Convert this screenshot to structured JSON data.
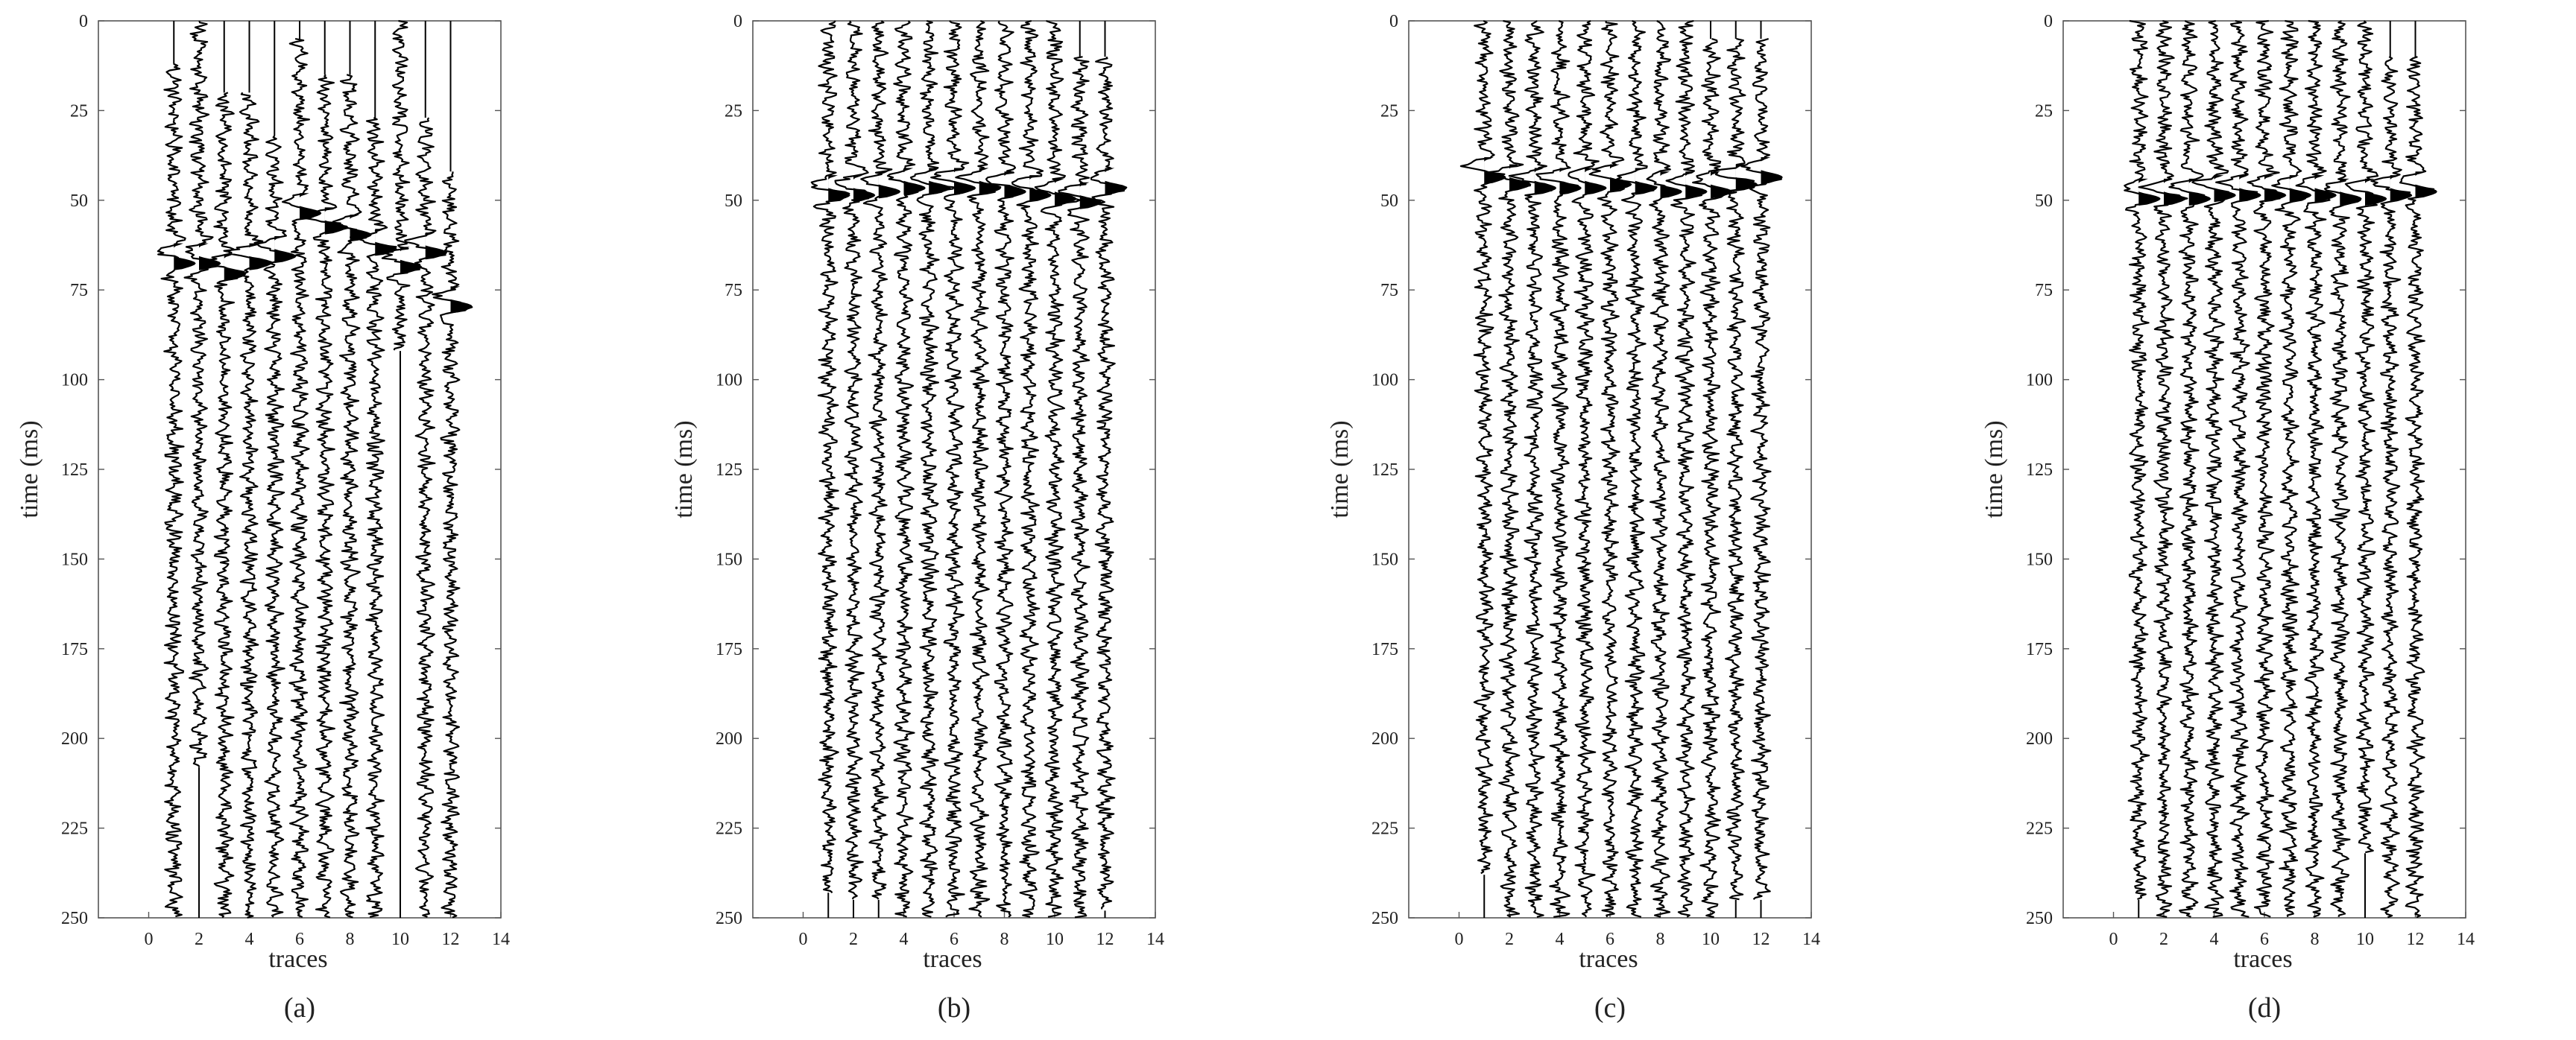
{
  "figure": {
    "panels": [
      {
        "caption": "(a)"
      },
      {
        "caption": "(b)"
      },
      {
        "caption": "(c)"
      },
      {
        "caption": "(d)"
      }
    ]
  },
  "chart_data": [
    {
      "type": "line",
      "title": "",
      "subtitle": "(a)",
      "xlabel": "traces",
      "ylabel": "time (ms)",
      "xlim": [
        -2,
        14
      ],
      "ylim": [
        0,
        250
      ],
      "y_inverted": true,
      "xticks": [
        0,
        2,
        4,
        6,
        8,
        10,
        12,
        14
      ],
      "yticks": [
        0,
        25,
        50,
        75,
        100,
        125,
        150,
        175,
        200,
        225,
        250
      ],
      "traces": [
        1,
        2,
        3,
        4,
        5,
        6,
        7,
        8,
        9,
        10,
        11,
        12
      ],
      "trace_start_ms": [
        12,
        0,
        20,
        20,
        32,
        5,
        15,
        15,
        27,
        0,
        27,
        42
      ],
      "trace_end_ms": [
        250,
        208,
        250,
        250,
        250,
        250,
        250,
        250,
        250,
        92,
        250,
        250
      ],
      "first_arrival_ms": [
        66,
        66,
        69,
        66,
        64,
        52,
        56,
        58,
        62,
        67,
        63,
        78
      ],
      "grid": false,
      "color": "#000000"
    },
    {
      "type": "line",
      "title": "",
      "subtitle": "(b)",
      "xlabel": "traces",
      "ylabel": "time (ms)",
      "xlim": [
        -2,
        14
      ],
      "ylim": [
        0,
        250
      ],
      "y_inverted": true,
      "xticks": [
        0,
        2,
        4,
        6,
        8,
        10,
        12,
        14
      ],
      "yticks": [
        0,
        25,
        50,
        75,
        100,
        125,
        150,
        175,
        200,
        225,
        250
      ],
      "traces": [
        1,
        2,
        3,
        4,
        5,
        6,
        7,
        8,
        9,
        10,
        11,
        12
      ],
      "trace_start_ms": [
        0,
        0,
        0,
        0,
        0,
        0,
        0,
        0,
        0,
        0,
        10,
        10
      ],
      "trace_end_ms": [
        243,
        245,
        245,
        250,
        250,
        250,
        250,
        250,
        250,
        250,
        250,
        248
      ],
      "first_arrival_ms": [
        47,
        47,
        46,
        45,
        45,
        45,
        45,
        46,
        47,
        48,
        49,
        45
      ],
      "grid": false,
      "color": "#000000"
    },
    {
      "type": "line",
      "title": "",
      "subtitle": "(c)",
      "xlabel": "traces",
      "ylabel": "time (ms)",
      "xlim": [
        -2,
        14
      ],
      "ylim": [
        0,
        250
      ],
      "y_inverted": true,
      "xticks": [
        0,
        2,
        4,
        6,
        8,
        10,
        12,
        14
      ],
      "yticks": [
        0,
        25,
        50,
        75,
        100,
        125,
        150,
        175,
        200,
        225,
        250
      ],
      "traces": [
        1,
        2,
        3,
        4,
        5,
        6,
        7,
        8,
        9,
        10,
        11,
        12
      ],
      "trace_start_ms": [
        0,
        0,
        0,
        0,
        0,
        0,
        0,
        0,
        0,
        5,
        5,
        5
      ],
      "trace_end_ms": [
        238,
        250,
        250,
        250,
        250,
        250,
        250,
        250,
        250,
        250,
        245,
        245
      ],
      "first_arrival_ms": [
        42,
        44,
        45,
        45,
        45,
        44,
        45,
        46,
        46,
        46,
        44,
        42
      ],
      "grid": false,
      "color": "#000000"
    },
    {
      "type": "line",
      "title": "",
      "subtitle": "(d)",
      "xlabel": "traces",
      "ylabel": "time (ms)",
      "xlim": [
        -2,
        14
      ],
      "ylim": [
        0,
        250
      ],
      "y_inverted": true,
      "xticks": [
        0,
        2,
        4,
        6,
        8,
        10,
        12,
        14
      ],
      "yticks": [
        0,
        25,
        50,
        75,
        100,
        125,
        150,
        175,
        200,
        225,
        250
      ],
      "traces": [
        1,
        2,
        3,
        4,
        5,
        6,
        7,
        8,
        9,
        10,
        11,
        12
      ],
      "trace_start_ms": [
        0,
        0,
        0,
        0,
        0,
        0,
        0,
        0,
        0,
        0,
        10,
        10
      ],
      "trace_end_ms": [
        245,
        250,
        250,
        250,
        250,
        250,
        250,
        250,
        250,
        232,
        250,
        250
      ],
      "first_arrival_ms": [
        48,
        48,
        48,
        47,
        47,
        47,
        47,
        47,
        48,
        48,
        47,
        46
      ],
      "grid": false,
      "color": "#000000"
    }
  ]
}
